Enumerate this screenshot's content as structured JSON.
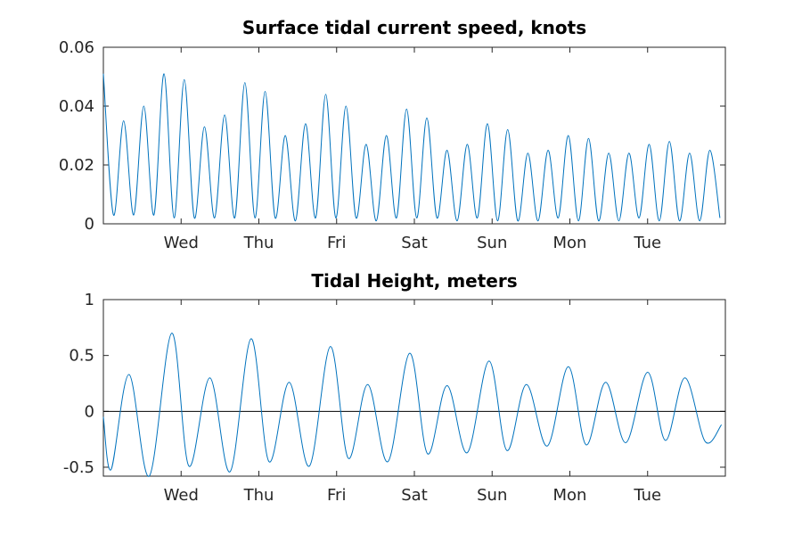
{
  "chart_data": [
    {
      "type": "line",
      "title": "Surface tidal current speed, knots",
      "xlabel": "",
      "ylabel": "",
      "x_tick_labels": [
        "Wed",
        "Thu",
        "Fri",
        "Sat",
        "Sun",
        "Mon",
        "Tue"
      ],
      "y_ticks": [
        0,
        0.02,
        0.04,
        0.06
      ],
      "y_tick_labels": [
        "0",
        "0.02",
        "0.04",
        "0.06"
      ],
      "ylim": [
        0,
        0.06
      ],
      "series_color": "#0072BD",
      "series": [
        {
          "x_days": [
            0.0,
            0.13,
            0.26,
            0.39,
            0.52,
            0.65,
            0.78,
            0.91,
            1.04,
            1.17,
            1.3,
            1.43,
            1.56,
            1.69,
            1.82,
            1.95,
            2.08,
            2.21,
            2.34,
            2.47,
            2.6,
            2.73,
            2.86,
            2.99,
            3.12,
            3.25,
            3.38,
            3.51,
            3.64,
            3.77,
            3.9,
            4.03,
            4.16,
            4.29,
            4.42,
            4.55,
            4.68,
            4.81,
            4.94,
            5.07,
            5.2,
            5.33,
            5.46,
            5.59,
            5.72,
            5.85,
            5.98,
            6.11,
            6.24,
            6.37,
            6.5,
            6.63,
            6.76,
            6.89,
            7.02,
            7.15,
            7.28,
            7.41,
            7.54,
            7.67,
            7.8,
            7.93
          ],
          "values": [
            0.051,
            0.003,
            0.035,
            0.003,
            0.04,
            0.003,
            0.051,
            0.002,
            0.049,
            0.002,
            0.033,
            0.002,
            0.037,
            0.002,
            0.048,
            0.002,
            0.045,
            0.002,
            0.03,
            0.001,
            0.034,
            0.002,
            0.044,
            0.002,
            0.04,
            0.002,
            0.027,
            0.001,
            0.03,
            0.002,
            0.039,
            0.002,
            0.036,
            0.002,
            0.025,
            0.001,
            0.027,
            0.002,
            0.034,
            0.001,
            0.032,
            0.001,
            0.024,
            0.001,
            0.025,
            0.002,
            0.03,
            0.001,
            0.029,
            0.001,
            0.024,
            0.001,
            0.024,
            0.002,
            0.027,
            0.001,
            0.028,
            0.001,
            0.024,
            0.001,
            0.025,
            0.002
          ]
        }
      ]
    },
    {
      "type": "line",
      "title": "Tidal Height, meters",
      "xlabel": "",
      "ylabel": "",
      "x_tick_labels": [
        "Wed",
        "Thu",
        "Fri",
        "Sat",
        "Sun",
        "Mon",
        "Tue"
      ],
      "y_ticks": [
        -0.5,
        0,
        0.5,
        1
      ],
      "y_tick_labels": [
        "-0.5",
        "0",
        "0.5",
        "1"
      ],
      "ylim": [
        -0.58,
        1
      ],
      "zero_line": true,
      "series_color": "#0072BD",
      "series": [
        {
          "x_days": [
            0.0,
            0.1,
            0.33,
            0.59,
            0.88,
            1.1,
            1.37,
            1.63,
            1.9,
            2.13,
            2.39,
            2.65,
            2.92,
            3.15,
            3.4,
            3.66,
            3.94,
            4.17,
            4.42,
            4.68,
            4.96,
            5.19,
            5.44,
            5.71,
            5.98,
            6.21,
            6.46,
            6.72,
            7.0,
            7.23,
            7.48,
            7.74,
            7.95
          ],
          "values": [
            -0.05,
            -0.52,
            0.33,
            -0.58,
            0.7,
            -0.49,
            0.3,
            -0.54,
            0.65,
            -0.45,
            0.26,
            -0.49,
            0.58,
            -0.42,
            0.24,
            -0.45,
            0.52,
            -0.38,
            0.23,
            -0.37,
            0.45,
            -0.35,
            0.24,
            -0.31,
            0.4,
            -0.3,
            0.26,
            -0.28,
            0.35,
            -0.26,
            0.3,
            -0.27,
            -0.12
          ]
        }
      ]
    }
  ]
}
